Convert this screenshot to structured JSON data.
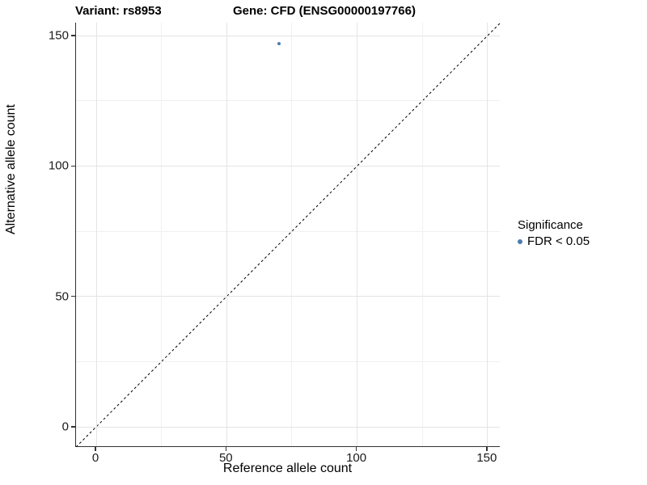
{
  "titles": {
    "variant": "Variant: rs8953",
    "gene": "Gene: CFD (ENSG00000197766)"
  },
  "chart_data": {
    "type": "scatter",
    "xlabel": "Reference allele count",
    "ylabel": "Alternative allele count",
    "xlim": [
      -7.75,
      155
    ],
    "ylim": [
      -7.75,
      155
    ],
    "xticks": [
      0,
      50,
      100,
      150
    ],
    "yticks": [
      0,
      50,
      100,
      150
    ],
    "minor_xticks": [
      25,
      75,
      125
    ],
    "minor_yticks": [
      25,
      75,
      125
    ],
    "grid": true,
    "reference_line": {
      "style": "dashed",
      "equation": "y = x",
      "color": "#000000"
    },
    "series": [
      {
        "name": "FDR < 0.05",
        "color": "#4d7cb0",
        "points": [
          {
            "x": 70,
            "y": 147
          }
        ]
      }
    ],
    "legend": {
      "title": "Significance",
      "position": "right",
      "entries": [
        {
          "label": "FDR < 0.05",
          "color": "#4d7cb0"
        }
      ]
    }
  },
  "colors": {
    "background": "#ffffff",
    "grid_major": "#e4e4e4",
    "grid_minor": "#f0f0f0",
    "axis_line": "#333333",
    "point": "#4d7cb0",
    "identity_line": "#000000"
  }
}
